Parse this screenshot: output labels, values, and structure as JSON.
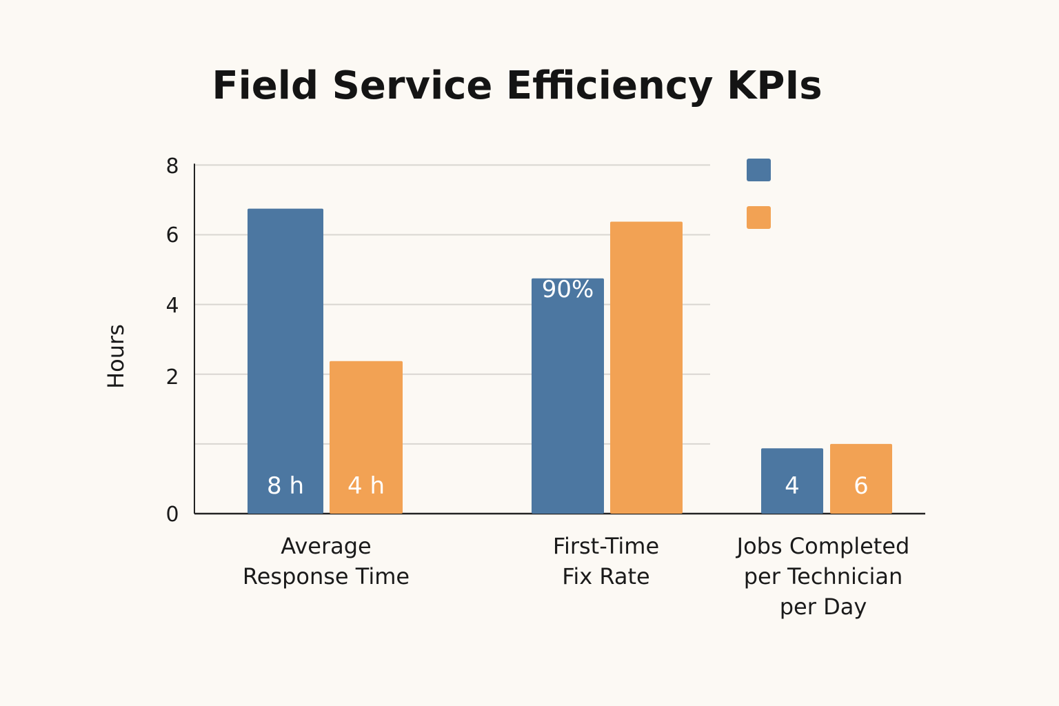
{
  "chart_data": {
    "type": "bar",
    "title": "Field Service Efficiency KPIs",
    "ylabel": "Hours",
    "xlabel": "",
    "ylim": [
      0,
      8
    ],
    "y_ticks": [
      0,
      2,
      4,
      6,
      8
    ],
    "categories": [
      [
        "Average",
        "Response Time"
      ],
      [
        "First-Time",
        "Fix Rate"
      ],
      [
        "Jobs Completed",
        "per Technician",
        "per Day"
      ]
    ],
    "series": [
      {
        "color": "#4c77a1",
        "values": [
          7.0,
          5.4,
          1.5
        ],
        "labels": [
          "8 h",
          "90%",
          "4"
        ]
      },
      {
        "color": "#f2a254",
        "values": [
          3.5,
          6.7,
          1.6
        ],
        "labels": [
          "4 h",
          "",
          "6"
        ]
      }
    ],
    "legend": {
      "position": "top-right"
    },
    "grid": true
  }
}
